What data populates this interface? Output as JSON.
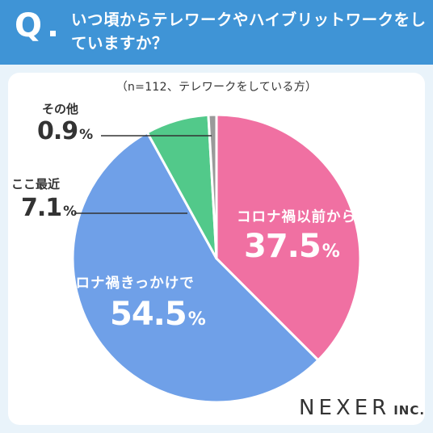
{
  "header": {
    "q_mark": "Q",
    "question": "いつ頃からテレワークやハイブリットワークをしていますか？"
  },
  "note": "（n=112、テレワークをしている方）",
  "labels": {
    "s1": {
      "name": "コロナ禍以前から",
      "value": "37.5"
    },
    "s2": {
      "name": "コロナ禍きっかけで",
      "value": "54.5"
    },
    "s3": {
      "name": "ここ最近",
      "value": "7.1"
    },
    "s4": {
      "name": "その他",
      "value": "0.9"
    }
  },
  "pct_sign": "%",
  "logo": {
    "brand": "NEXER",
    "suffix": "INC."
  },
  "chart_data": {
    "type": "pie",
    "title": "",
    "categories": [
      "コロナ禍以前から",
      "コロナ禍きっかけで",
      "ここ最近",
      "その他"
    ],
    "values": [
      37.5,
      54.5,
      7.1,
      0.9
    ],
    "unit": "%",
    "n": 112,
    "start": "12 o'clock",
    "direction": "clockwise",
    "colors": [
      "#f070a2",
      "#6fa0e8",
      "#52c98a",
      "#9a9a9a"
    ]
  }
}
